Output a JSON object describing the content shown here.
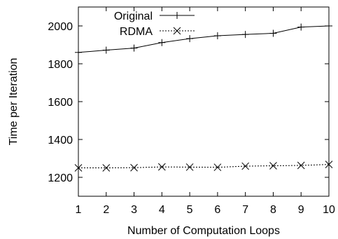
{
  "chart_data": {
    "type": "line",
    "title": "",
    "xlabel": "Number of Computation Loops",
    "ylabel": "Time per Iteration",
    "x": [
      1,
      2,
      3,
      4,
      5,
      6,
      7,
      8,
      9,
      10
    ],
    "xlim": [
      1,
      10
    ],
    "ylim": [
      1100,
      2100
    ],
    "xticks": [
      1,
      2,
      3,
      4,
      5,
      6,
      7,
      8,
      9,
      10
    ],
    "yticks": [
      1200,
      1400,
      1600,
      1800,
      2000
    ],
    "grid": false,
    "legend_position": "top-center",
    "series": [
      {
        "name": "Original",
        "marker": "plus",
        "line_style": "solid",
        "color": "#000000",
        "values": [
          1860,
          1872,
          1883,
          1912,
          1933,
          1948,
          1955,
          1961,
          1994,
          2000
        ]
      },
      {
        "name": "RDMA",
        "marker": "cross",
        "line_style": "dotted",
        "color": "#000000",
        "values": [
          1250,
          1250,
          1251,
          1255,
          1254,
          1253,
          1259,
          1261,
          1263,
          1268
        ]
      }
    ]
  }
}
